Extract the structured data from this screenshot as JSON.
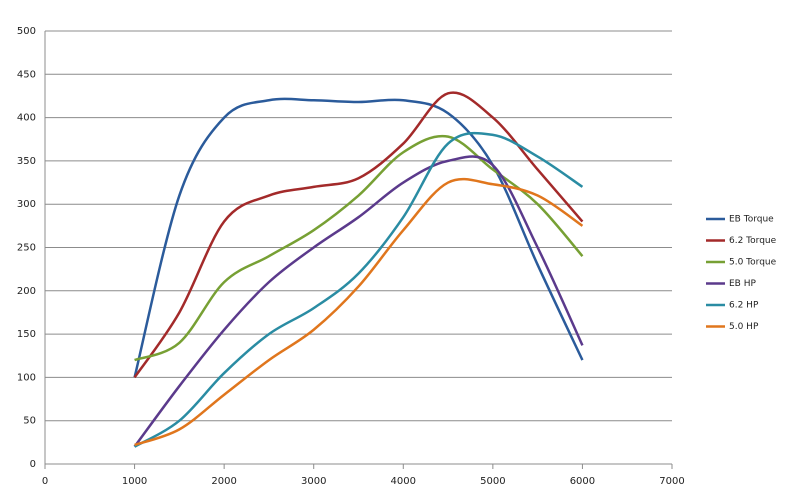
{
  "chart_data": {
    "type": "line",
    "smooth": true,
    "grid": true,
    "legend": "right",
    "x": [
      1000,
      1500,
      2000,
      2500,
      3000,
      3500,
      4000,
      4500,
      5000,
      5500,
      6000
    ],
    "xlim": [
      0,
      7000
    ],
    "xticks": [
      0,
      1000,
      2000,
      3000,
      4000,
      5000,
      6000,
      7000
    ],
    "ylim": [
      0,
      500
    ],
    "yticks": [
      0,
      50,
      100,
      150,
      200,
      250,
      300,
      350,
      400,
      450,
      500
    ],
    "series": [
      {
        "name": "EB Torque",
        "color": "#2b5b9b",
        "values": [
          100,
          310,
          400,
          420,
          420,
          418,
          420,
          405,
          345,
          230,
          120
        ]
      },
      {
        "name": "6.2 Torque",
        "color": "#a32a2a",
        "values": [
          100,
          175,
          280,
          310,
          320,
          330,
          370,
          428,
          400,
          340,
          280
        ]
      },
      {
        "name": "5.0 Torque",
        "color": "#77a034",
        "values": [
          120,
          140,
          210,
          240,
          270,
          310,
          360,
          378,
          340,
          300,
          240
        ]
      },
      {
        "name": "EB HP",
        "color": "#5b3a8c",
        "values": [
          20,
          90,
          155,
          210,
          250,
          285,
          325,
          350,
          345,
          250,
          137
        ]
      },
      {
        "name": "6.2 HP",
        "color": "#2a8ca3",
        "values": [
          20,
          50,
          105,
          150,
          180,
          220,
          285,
          370,
          380,
          355,
          320
        ]
      },
      {
        "name": "5.0 HP",
        "color": "#e0761d",
        "values": [
          22,
          40,
          80,
          120,
          155,
          205,
          270,
          325,
          323,
          310,
          275
        ]
      }
    ]
  }
}
